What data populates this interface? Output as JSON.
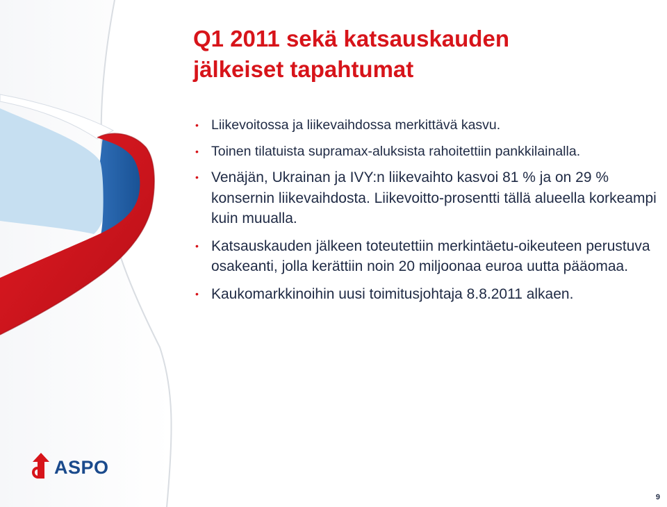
{
  "slide": {
    "title_lines": [
      "Q1 2011 sekä katsauskauden",
      "jälkeiset tapahtumat"
    ],
    "bullets": [
      "Liikevoitossa ja liikevaihdossa merkittävä kasvu.",
      "Toinen tilatuista supramax-aluksista rahoitettiin pankkilainalla.",
      "Venäjän, Ukrainan ja IVY:n liikevaihto kasvoi 81 % ja on 29 % konsernin liikevaihdosta. Liikevoitto-prosentti tällä alueella korkeampi kuin muualla.",
      "Katsauskauden jälkeen toteutettiin merkintäetu-oikeuteen perustuva osakeanti, jolla kerättiin noin 20 miljoonaa euroa uutta pääomaa.",
      "Kaukomarkkinoihin uusi toimitusjohtaja 8.8.2011 alkaen."
    ],
    "bullet_symbol": "•",
    "logo_text": "ASPO",
    "logo_icon": "aspo-arrow-logo-icon",
    "page_number": "9"
  },
  "colors": {
    "title": "#d7141a",
    "text": "#1f2a44",
    "bullet": "#d7141a",
    "logo_text": "#1a4a8c",
    "logo_mark": "#d7141a",
    "ribbon_red": "#d7141a",
    "ribbon_blue": "#1f5fa8",
    "ribbon_light_blue": "#c6dff1"
  }
}
